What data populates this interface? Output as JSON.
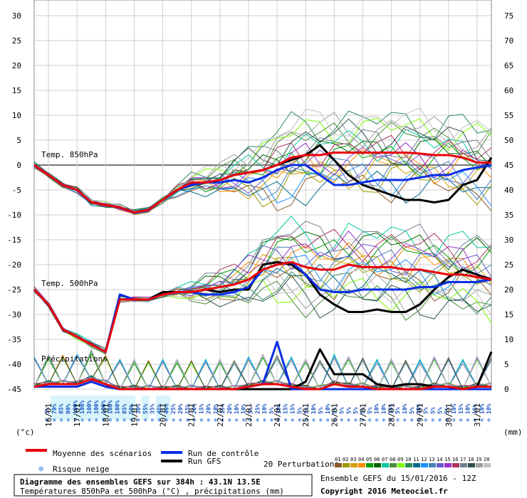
{
  "chart_data": {
    "type": "line",
    "temp_axis": {
      "label": "(°c)",
      "ticks": [
        30,
        25,
        20,
        15,
        10,
        5,
        0,
        -5,
        -10,
        -15,
        -20,
        -25,
        -30,
        -35,
        -40,
        -45
      ],
      "ylim": [
        -45,
        30
      ]
    },
    "precip_axis": {
      "label": "(mm)",
      "ticks": [
        75,
        70,
        65,
        60,
        55,
        50,
        45,
        40,
        35,
        30,
        25,
        20,
        15,
        10,
        5,
        0
      ],
      "ylim": [
        0,
        75
      ]
    },
    "x_ticks": [
      "16/01",
      "17/01",
      "18/01",
      "19/01",
      "20/01",
      "21/01",
      "22/01",
      "23/01",
      "24/01",
      "25/01",
      "26/01",
      "27/01",
      "28/01",
      "29/01",
      "30/01",
      "31/01"
    ],
    "annotations": {
      "t850": "Temp. 850hPa",
      "t500": "Temp. 500hPa",
      "precip": "Précipitations"
    },
    "t850_mean": [
      0,
      -2,
      -4,
      -5,
      -7.5,
      -8,
      -8.5,
      -9.5,
      -9,
      -7,
      -5,
      -3.5,
      -3.5,
      -3,
      -2,
      -1.5,
      -1,
      0,
      1.5,
      2,
      2,
      2.5,
      2.5,
      2.5,
      2.5,
      2.5,
      2.5,
      2.3,
      2,
      2,
      1.5,
      0.5,
      0.5
    ],
    "t850_control": [
      0,
      -2,
      -4,
      -5,
      -7.5,
      -8,
      -8.5,
      -9.5,
      -9,
      -7,
      -5,
      -4,
      -3.5,
      -3.5,
      -3,
      -3.5,
      -2.5,
      -1,
      0,
      0,
      -2,
      -4,
      -4,
      -3.5,
      -3,
      -3,
      -3,
      -2.5,
      -2,
      -2,
      -1,
      -0.5,
      0
    ],
    "t850_gfs": [
      0,
      -2,
      -4,
      -5,
      -7.5,
      -8,
      -8.5,
      -9.5,
      -9,
      -7,
      -5,
      -4,
      -3.5,
      -3,
      -2,
      -1.5,
      -1,
      0,
      1,
      2,
      4,
      1,
      -2,
      -4,
      -5,
      -6,
      -7,
      -7,
      -7.5,
      -7,
      -4,
      -3,
      1.5
    ],
    "t500_mean": [
      -25,
      -28,
      -33,
      -34.5,
      -36,
      -37.5,
      -27,
      -27,
      -27,
      -26,
      -25.5,
      -25.5,
      -25,
      -24.5,
      -24,
      -23,
      -21,
      -20,
      -19.5,
      -20.5,
      -21,
      -21,
      -20,
      -20.5,
      -20.5,
      -20.5,
      -21,
      -21,
      -21.5,
      -22,
      -22,
      -22.5,
      -23
    ],
    "t500_control": [
      -25,
      -28,
      -33,
      -34.5,
      -36,
      -37.5,
      -26,
      -27,
      -27,
      -26,
      -25.5,
      -25.5,
      -26,
      -26,
      -25.5,
      -24.5,
      -21,
      -20,
      -19.5,
      -22,
      -25,
      -25.5,
      -25.5,
      -25,
      -25,
      -25,
      -25,
      -24.5,
      -24.5,
      -23.5,
      -23.5,
      -23.5,
      -23
    ],
    "t500_gfs": [
      -25,
      -28,
      -33,
      -34.5,
      -36,
      -37.5,
      -26,
      -27,
      -27,
      -25.5,
      -25.5,
      -25.5,
      -25,
      -25.5,
      -25,
      -25,
      -20,
      -19.5,
      -20,
      -22,
      -26,
      -28,
      -29.5,
      -29.5,
      -29,
      -29.5,
      -29.5,
      -28,
      -25,
      -22.5,
      -21,
      -22,
      -23
    ],
    "precip_gfs": [
      0.5,
      0.5,
      0.5,
      0.5,
      1.5,
      0.5,
      0,
      0,
      0,
      0,
      0,
      0,
      0,
      0,
      0,
      0,
      0,
      0,
      0,
      1.5,
      8,
      3,
      3,
      3,
      1,
      0.5,
      1,
      1,
      0.5,
      0.5,
      0,
      0.5,
      7.5
    ],
    "precip_control": [
      0.5,
      0.5,
      0.5,
      0.5,
      1.5,
      0.5,
      0,
      0,
      0,
      0,
      0,
      0,
      0,
      0,
      0,
      0.5,
      1,
      9.5,
      0,
      0,
      0,
      0,
      0,
      0,
      0,
      0,
      0,
      0,
      0,
      0,
      0,
      0,
      0
    ],
    "precip_mean": [
      0.5,
      1,
      1,
      1,
      2,
      1,
      0,
      0,
      0,
      0,
      0,
      0,
      0,
      0,
      0,
      0.5,
      1,
      1,
      0.5,
      0,
      0,
      1,
      0.5,
      0.5,
      0,
      0,
      0,
      0,
      0.5,
      0.5,
      0,
      0.5,
      0.5
    ],
    "snow_risk_pct": [
      "5%",
      "70%",
      "85%",
      "90%",
      "100%",
      "100%",
      "100%",
      "100%",
      "100%",
      "100%",
      "100%",
      "85%",
      "50%",
      "30%",
      "55%",
      "35%",
      "45%",
      "40%",
      "25%",
      "20%",
      "15%",
      "20%",
      "15%",
      "20%",
      "10%",
      "15%",
      "20%",
      "10%",
      "10%",
      "5%",
      "25%",
      "10%",
      "5%",
      "10%",
      "15%",
      "15%",
      "5%",
      "5%",
      "10%",
      "5%",
      "10%",
      "5%",
      "5%",
      "5%",
      "5%",
      "5%",
      "5%",
      "10%",
      "10%",
      "15%",
      "5%",
      "10%",
      "5%",
      "10%",
      "5%",
      "5%",
      "5%",
      "5%",
      "10%",
      "15%",
      "10%",
      "15%",
      "10%",
      "10%"
    ],
    "legend": [
      {
        "label": "Moyenne des scénarios",
        "color": "#e8000b"
      },
      {
        "label": "Run de contrôle",
        "color": "#0a2ee6"
      },
      {
        "label": "Run GFS",
        "color": "#000000"
      },
      {
        "label": "Risque neige",
        "color": "#4a8fe0"
      }
    ],
    "perturbations": {
      "label": "20 Perturbations",
      "numbers": [
        "01",
        "02",
        "03",
        "04",
        "05",
        "06",
        "07",
        "08",
        "09",
        "10",
        "11",
        "12",
        "13",
        "14",
        "15",
        "16",
        "17",
        "18",
        "19",
        "20"
      ],
      "colors": [
        "#8b5a2b",
        "#9a9a00",
        "#d4a000",
        "#ff8c00",
        "#00a000",
        "#006400",
        "#00c8a0",
        "#4b8b3b",
        "#7cfc00",
        "#2e8b57",
        "#006a8a",
        "#1e90ff",
        "#4682b4",
        "#6a5acd",
        "#9932cc",
        "#b03060",
        "#708090",
        "#2f4f4f",
        "#a0a0a0",
        "#c0c0c0"
      ]
    }
  },
  "footer": {
    "title": "Diagramme des ensembles GEFS sur 384h : 43.1N 13.5E",
    "subtitle": "Températures 850hPa et 500hPa (°C) , précipitations (mm)",
    "run_info": "Ensemble GEFS du 15/01/2016 - 12Z",
    "copyright": "Copyright 2016 Meteociel.fr"
  }
}
